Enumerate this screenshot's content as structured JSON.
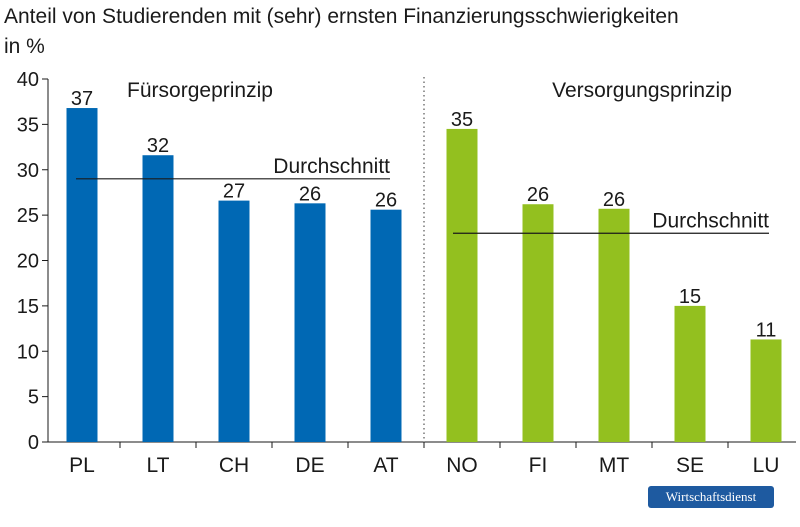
{
  "title": "Anteil von Studierenden mit (sehr) ernsten Finanzierungsschwierigkeiten",
  "unit_label": "in %",
  "source_badge": "Wirtschaftsdienst",
  "chart_data": {
    "type": "bar",
    "ylim": [
      0,
      40
    ],
    "yticks": [
      0,
      5,
      10,
      15,
      20,
      25,
      30,
      35,
      40
    ],
    "grid": false,
    "groups": [
      {
        "name": "Fürsorgeprinzip",
        "color": "#0068b4",
        "categories": [
          "PL",
          "LT",
          "CH",
          "DE",
          "AT"
        ],
        "values": [
          36.8,
          31.6,
          26.6,
          26.3,
          25.6
        ],
        "labels": [
          "37",
          "32",
          "27",
          "26",
          "26"
        ],
        "average": 29,
        "average_label": "Durchschnitt"
      },
      {
        "name": "Versorgungsprinzip",
        "color": "#93c01f",
        "categories": [
          "NO",
          "FI",
          "MT",
          "SE",
          "LU"
        ],
        "values": [
          34.5,
          26.2,
          25.7,
          15.0,
          11.3
        ],
        "labels": [
          "35",
          "26",
          "26",
          "15",
          "11"
        ],
        "average": 23,
        "average_label": "Durchschnitt"
      }
    ]
  }
}
